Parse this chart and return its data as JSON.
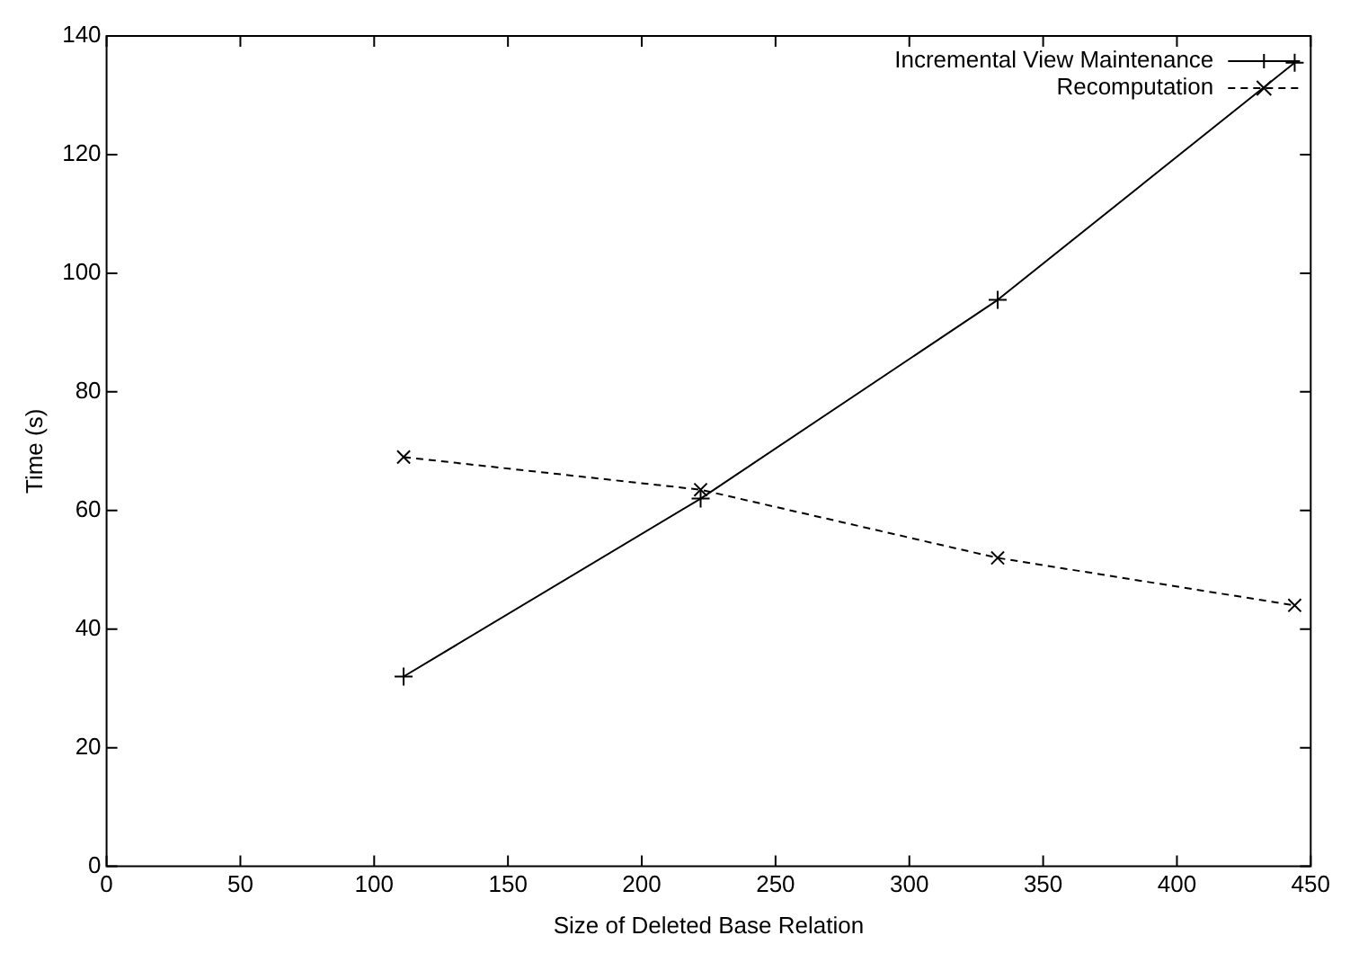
{
  "chart_data": {
    "type": "line",
    "xlabel": "Size of Deleted Base Relation",
    "ylabel": "Time (s)",
    "xlim": [
      0,
      450
    ],
    "xticks": [
      0,
      50,
      100,
      150,
      200,
      250,
      300,
      350,
      400,
      450
    ],
    "ylim": [
      0,
      140
    ],
    "yticks": [
      0,
      20,
      40,
      60,
      80,
      100,
      120,
      140
    ],
    "grid": false,
    "legend": "top right",
    "x": [
      111,
      222,
      333,
      444
    ],
    "series": [
      {
        "name": "Incremental View Maintenance",
        "color": "#000000",
        "values": [
          32,
          62,
          95.5,
          135.5
        ],
        "marker": "cross",
        "line_style": "solid"
      },
      {
        "name": "Recomputation",
        "color": "#000000",
        "values": [
          69,
          63.5,
          52,
          44
        ],
        "marker": "x",
        "line_style": "dashed"
      }
    ]
  }
}
